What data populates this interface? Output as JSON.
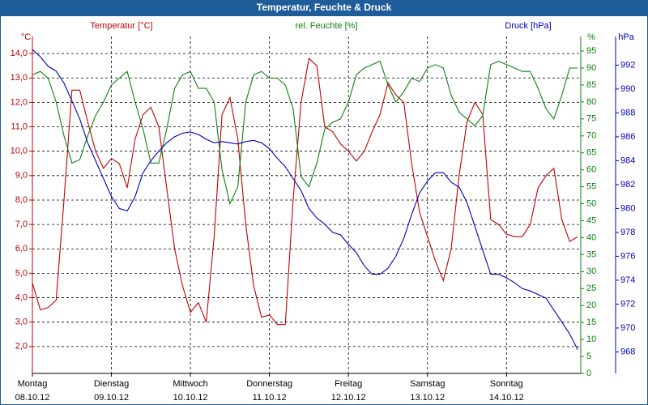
{
  "chart_data": {
    "type": "line",
    "title": "Temperatur, Feuchte & Druck",
    "y_label": "Temperatur [°C]",
    "y_unit": "°C",
    "y2_label": "rel. Feuchte [%]",
    "y2_unit": "%",
    "y3_label": "Druck [hPa]",
    "y3_unit": "hPa",
    "grid": true,
    "xlim": [
      0,
      6.94
    ],
    "xticks": [
      {
        "value": 0,
        "label": "Montag"
      },
      {
        "value": 1,
        "label": "Dienstag"
      },
      {
        "value": 2,
        "label": "Mittwoch"
      },
      {
        "value": 3,
        "label": "Donnerstag"
      },
      {
        "value": 4,
        "label": "Freitag"
      },
      {
        "value": 5,
        "label": "Samstag"
      },
      {
        "value": 6,
        "label": "Sonntag"
      }
    ],
    "xtick_dates": [
      "08.10.12",
      "09.10.12",
      "10.10.12",
      "11.10.12",
      "12.10.12",
      "13.10.12",
      "14.10.12"
    ],
    "ylim": [
      0.9,
      14.7
    ],
    "yticks": [
      {
        "value": 2,
        "label": "2,0"
      },
      {
        "value": 3,
        "label": "3,0"
      },
      {
        "value": 4,
        "label": "4,0"
      },
      {
        "value": 5,
        "label": "5,0"
      },
      {
        "value": 6,
        "label": "6,0"
      },
      {
        "value": 7,
        "label": "7,0"
      },
      {
        "value": 8,
        "label": "8,0"
      },
      {
        "value": 9,
        "label": "9,0"
      },
      {
        "value": 10,
        "label": "10,0"
      },
      {
        "value": 11,
        "label": "11,0"
      },
      {
        "value": 12,
        "label": "12,0"
      },
      {
        "value": 13,
        "label": "13,0"
      },
      {
        "value": 14,
        "label": "14,0"
      }
    ],
    "y2lim": [
      0,
      99.3
    ],
    "y2ticks": [
      0,
      5,
      10,
      15,
      20,
      25,
      30,
      35,
      40,
      45,
      50,
      55,
      60,
      65,
      70,
      75,
      80,
      85,
      90,
      95
    ],
    "y3lim": [
      966.2,
      994.4
    ],
    "y3ticks": [
      968,
      970,
      972,
      974,
      976,
      978,
      980,
      982,
      984,
      986,
      988,
      990,
      992
    ],
    "x": [
      0,
      0.1,
      0.2,
      0.3,
      0.4,
      0.5,
      0.6,
      0.7,
      0.8,
      0.9,
      1,
      1.1,
      1.2,
      1.3,
      1.4,
      1.5,
      1.6,
      1.7,
      1.8,
      1.9,
      2,
      2.1,
      2.2,
      2.3,
      2.4,
      2.5,
      2.6,
      2.7,
      2.8,
      2.9,
      3,
      3.1,
      3.2,
      3.3,
      3.4,
      3.5,
      3.6,
      3.7,
      3.8,
      3.9,
      4,
      4.1,
      4.2,
      4.3,
      4.4,
      4.5,
      4.6,
      4.7,
      4.8,
      4.9,
      5,
      5.1,
      5.2,
      5.3,
      5.4,
      5.5,
      5.6,
      5.7,
      5.8,
      5.9,
      6,
      6.1,
      6.2,
      6.3,
      6.4,
      6.5,
      6.6,
      6.7,
      6.8,
      6.9
    ],
    "series": [
      {
        "name": "Temperatur",
        "color": "#c00000",
        "axis": "y",
        "values": [
          4.6,
          3.5,
          3.6,
          3.9,
          8.0,
          12.5,
          12.5,
          11.2,
          10.0,
          9.3,
          9.7,
          9.5,
          8.5,
          10.5,
          11.5,
          11.8,
          11.0,
          8.5,
          6.0,
          4.5,
          3.4,
          3.8,
          3.0,
          6.5,
          11.5,
          12.2,
          10.5,
          7.0,
          4.5,
          3.2,
          3.3,
          2.9,
          2.9,
          8.0,
          12.0,
          13.8,
          13.5,
          11.0,
          10.8,
          10.3,
          10.0,
          9.6,
          10.0,
          10.8,
          11.5,
          12.8,
          12.3,
          12.0,
          9.5,
          7.5,
          6.5,
          5.5,
          4.7,
          6.0,
          9.0,
          11.2,
          12.0,
          11.5,
          7.2,
          7.0,
          6.6,
          6.5,
          6.5,
          7.0,
          8.5,
          9.0,
          9.3,
          7.2,
          6.3,
          6.5
        ]
      },
      {
        "name": "rel. Feuchte",
        "color": "#108010",
        "axis": "y2",
        "values": [
          88,
          89,
          87,
          80,
          70,
          62,
          63,
          70,
          76,
          80,
          85,
          87,
          89,
          80,
          72,
          62,
          62,
          72,
          84,
          88,
          89,
          84,
          84,
          80,
          60,
          50,
          55,
          80,
          88,
          89,
          87,
          87,
          85,
          78,
          58,
          55,
          62,
          72,
          74,
          75,
          80,
          88,
          90,
          91,
          92,
          85,
          80,
          83,
          87,
          86,
          90,
          91,
          90,
          82,
          77,
          75,
          73,
          76,
          91,
          92,
          91,
          90,
          89,
          89,
          84,
          78,
          75,
          82,
          90,
          90
        ]
      },
      {
        "name": "Druck",
        "color": "#0000c0",
        "axis": "y3",
        "values": [
          993.3,
          992.7,
          991.9,
          991.5,
          990.5,
          989,
          987.5,
          985.5,
          984,
          982.5,
          981,
          980,
          979.8,
          981,
          983,
          984,
          984.8,
          985.5,
          986,
          986.3,
          986.4,
          986.2,
          985.8,
          985.5,
          985.6,
          985.5,
          985.4,
          985.6,
          985.7,
          985.5,
          985,
          984.2,
          983.5,
          982.5,
          981.5,
          980,
          979.2,
          978.7,
          978,
          977.8,
          977,
          976.3,
          975.2,
          974.5,
          974.5,
          975,
          976,
          977.5,
          979.5,
          981.3,
          982.3,
          983,
          983,
          982.2,
          981.8,
          980.5,
          978.5,
          976.5,
          974.5,
          974.5,
          974.2,
          973.8,
          973.3,
          973.1,
          972.8,
          972.5,
          971.5,
          970.5,
          969.5,
          968.2
        ]
      }
    ]
  }
}
